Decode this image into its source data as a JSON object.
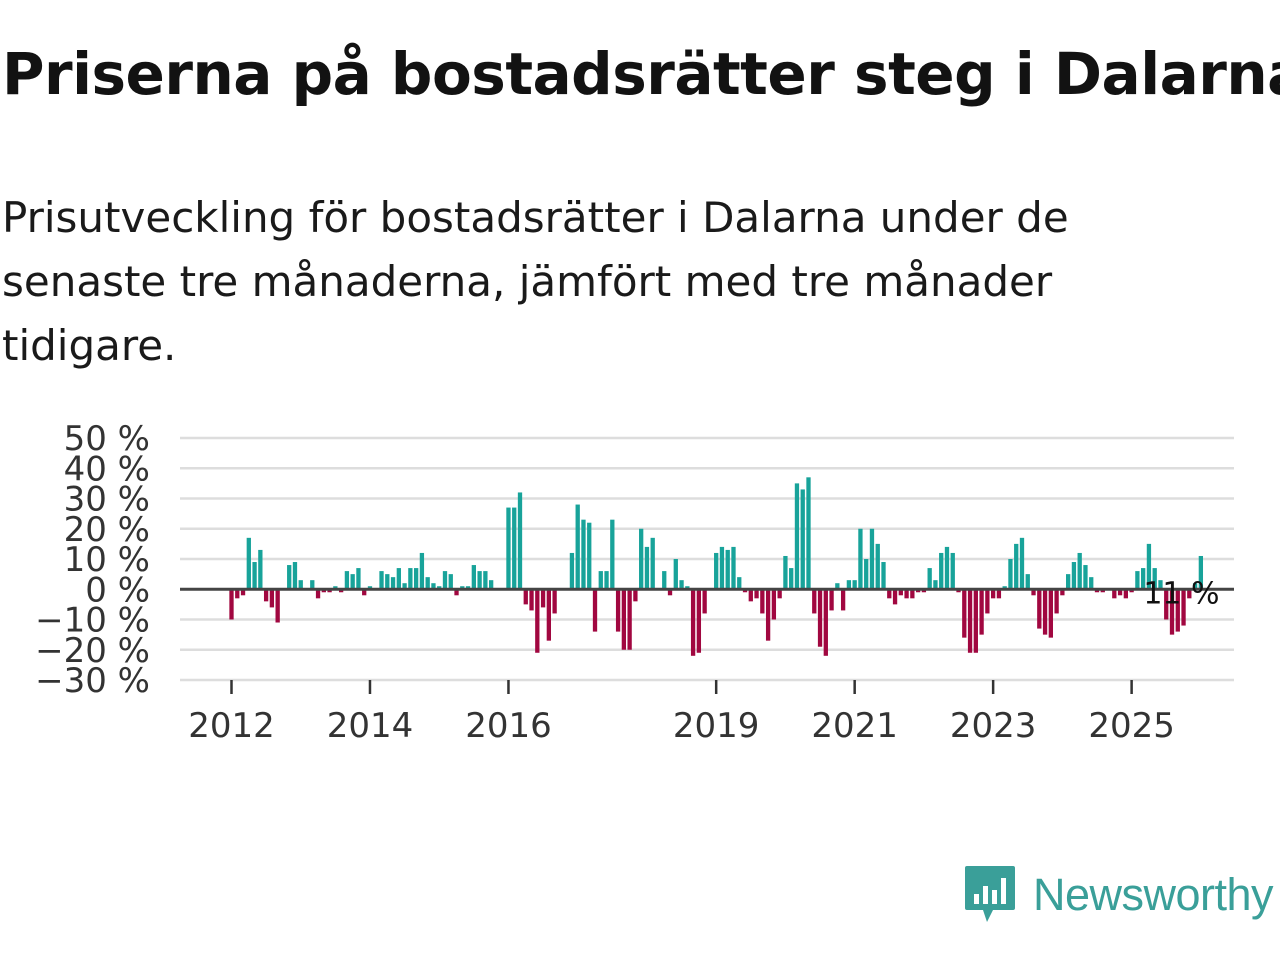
{
  "title": "Priserna på bostadsrätter steg i Dalarna",
  "subtitle": "Prisutveckling för bostadsrätter i Dalarna under de senaste tre månaderna, jämfört med tre månader tidigare.",
  "brand": {
    "name": "Newsworthy",
    "color": "#3a9f99"
  },
  "colors": {
    "positive": "#18a39a",
    "negative": "#a10740",
    "grid": "#dddddd",
    "zero": "#444444"
  },
  "chart_data": {
    "type": "bar",
    "title": "Priserna på bostadsrätter steg i Dalarna",
    "ylabel": "",
    "xlabel": "",
    "ylim": [
      -30,
      50
    ],
    "y_ticks": [
      50,
      40,
      30,
      20,
      10,
      0,
      -10,
      -20,
      -30
    ],
    "y_tick_labels": [
      "50 %",
      "40 %",
      "30 %",
      "20 %",
      "10 %",
      "0 %",
      "−10 %",
      "−20 %",
      "−30 %"
    ],
    "x_ticks": [
      {
        "label": "2012",
        "index": 0
      },
      {
        "label": "2014",
        "index": 24
      },
      {
        "label": "2016",
        "index": 48
      },
      {
        "label": "2019",
        "index": 84
      },
      {
        "label": "2021",
        "index": 108
      },
      {
        "label": "2023",
        "index": 132
      },
      {
        "label": "2025",
        "index": 156
      }
    ],
    "start": "2012-01",
    "annotation": {
      "text": "11 %",
      "index": 165
    },
    "values": [
      -10,
      -3,
      -2,
      17,
      9,
      13,
      -4,
      -6,
      -11,
      0,
      8,
      9,
      3,
      0,
      3,
      -3,
      -1,
      -1,
      1,
      -1,
      6,
      5,
      7,
      -2,
      1,
      0,
      6,
      5,
      4,
      7,
      2,
      7,
      7,
      12,
      4,
      2,
      1,
      6,
      5,
      -2,
      1,
      1,
      8,
      6,
      6,
      3,
      0,
      0,
      27,
      27,
      32,
      -5,
      -7,
      -21,
      -6,
      -17,
      -8,
      0,
      0,
      12,
      28,
      23,
      22,
      -14,
      6,
      6,
      23,
      -14,
      -20,
      -20,
      -4,
      20,
      14,
      17,
      0,
      6,
      -2,
      10,
      3,
      1,
      -22,
      -21,
      -8,
      0,
      12,
      14,
      13,
      14,
      4,
      -1,
      -4,
      -3,
      -8,
      -17,
      -10,
      -3,
      11,
      7,
      35,
      33,
      37,
      -8,
      -19,
      -22,
      -7,
      2,
      -7,
      3,
      3,
      20,
      10,
      20,
      15,
      9,
      -3,
      -5,
      -2,
      -3,
      -3,
      -1,
      -1,
      7,
      3,
      12,
      14,
      12,
      -1,
      -16,
      -21,
      -21,
      -15,
      -8,
      -3,
      -3,
      1,
      10,
      15,
      17,
      5,
      -2,
      -13,
      -15,
      -16,
      -8,
      -2,
      5,
      9,
      12,
      8,
      4,
      -1,
      -1,
      0,
      -3,
      -2,
      -3,
      -1,
      6,
      7,
      15,
      7,
      3,
      -10,
      -15,
      -14,
      -12,
      -3,
      2,
      11
    ]
  }
}
